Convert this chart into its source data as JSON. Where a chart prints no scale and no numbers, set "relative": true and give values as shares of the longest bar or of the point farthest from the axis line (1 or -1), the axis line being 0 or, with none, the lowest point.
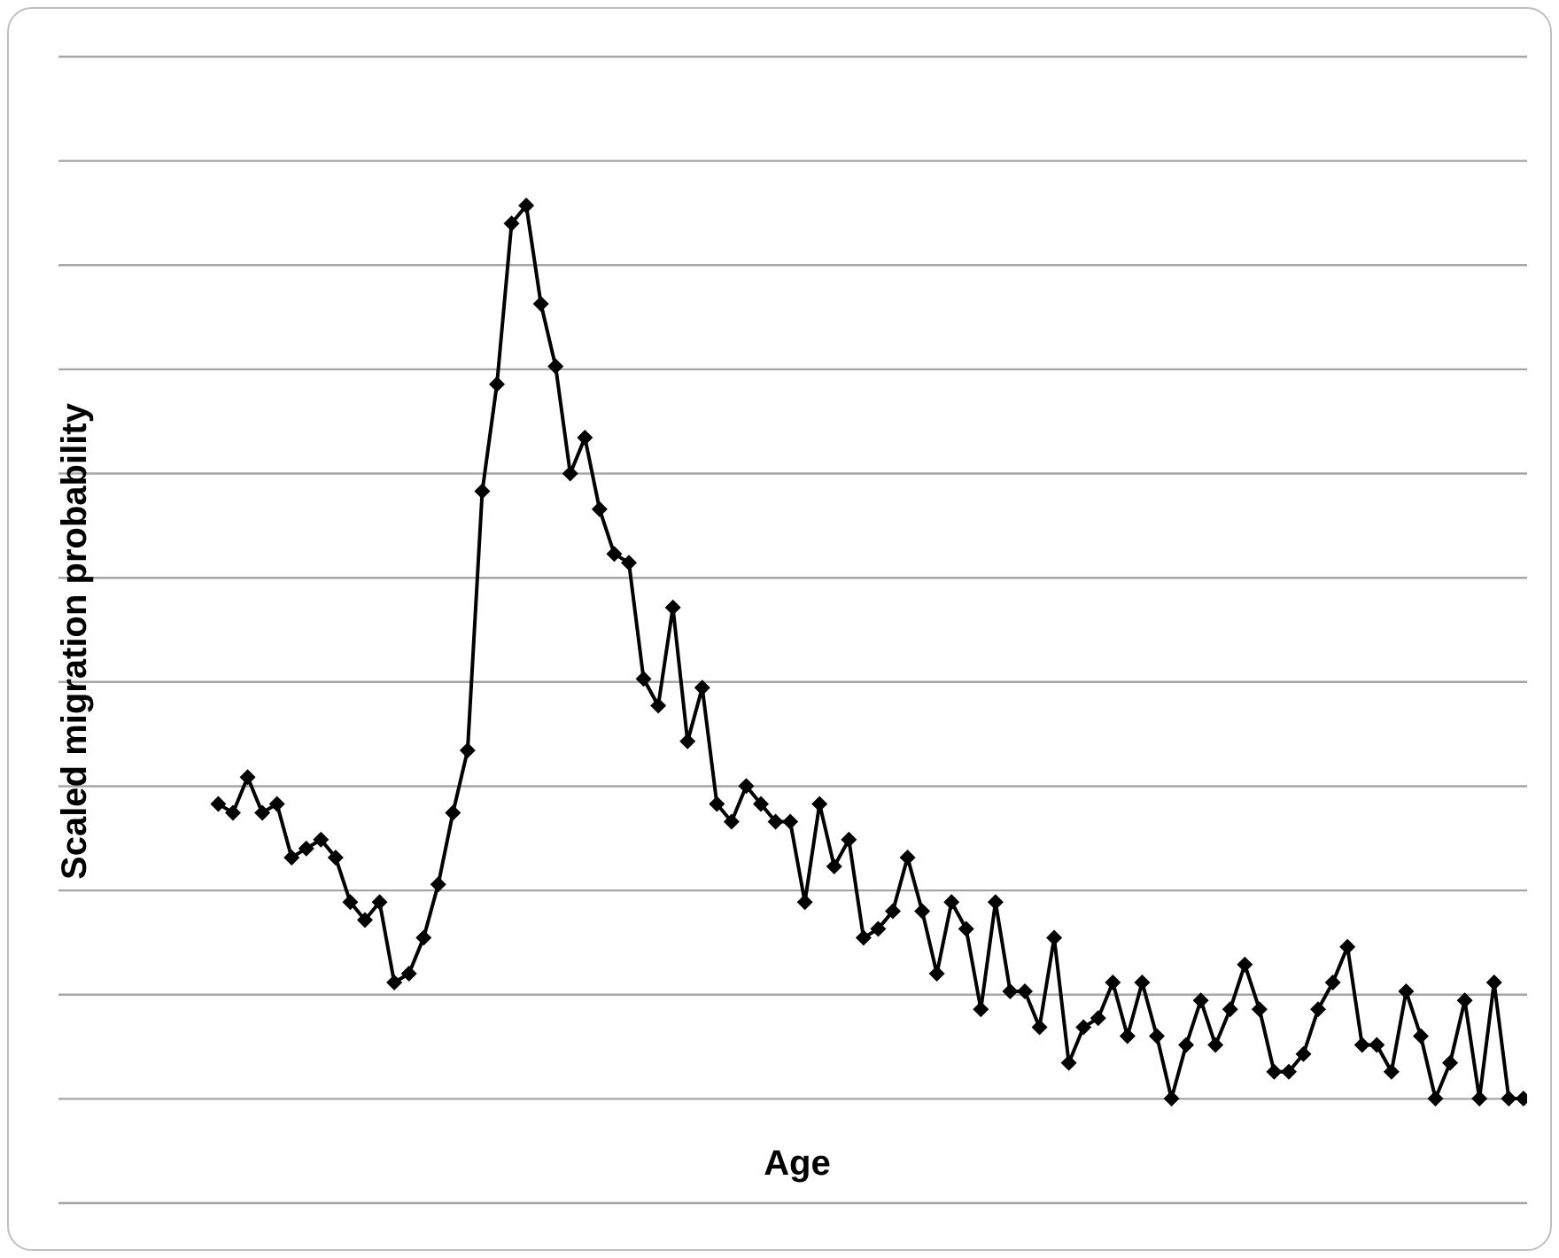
{
  "chart_data": {
    "type": "line",
    "xlabel": "Age",
    "ylabel": "Scaled migration probability",
    "relative": true,
    "grid": "y",
    "marker": "diamond",
    "line_style": "solid",
    "categories": [
      null,
      null,
      null,
      null,
      null,
      null,
      null,
      null,
      null,
      null,
      null,
      null,
      null,
      null,
      null,
      null,
      null,
      null,
      null,
      null,
      null,
      null,
      null,
      null,
      null,
      null,
      null,
      null,
      null,
      null,
      null,
      null,
      null,
      null,
      null,
      null,
      null,
      null,
      null,
      null,
      null,
      null,
      null,
      null,
      null,
      null,
      null,
      null,
      null,
      null,
      null,
      null,
      null,
      null,
      null,
      null,
      null,
      null,
      null,
      null,
      null,
      null,
      null,
      null,
      null,
      null,
      null,
      null,
      null,
      null,
      null,
      null,
      null,
      null,
      null,
      null,
      null,
      null,
      null,
      null,
      null,
      null,
      null,
      null,
      null,
      null,
      null,
      null,
      null,
      null
    ],
    "series": [
      {
        "color": "#000000",
        "values": [
          0.33,
          0.32,
          0.36,
          0.32,
          0.33,
          0.27,
          0.28,
          0.29,
          0.27,
          0.22,
          0.2,
          0.22,
          0.13,
          0.14,
          0.18,
          0.24,
          0.32,
          0.39,
          0.68,
          0.8,
          0.98,
          1,
          0.89,
          0.82,
          0.7,
          0.74,
          0.66,
          0.61,
          0.6,
          0.47,
          0.44,
          0.55,
          0.4,
          0.46,
          0.33,
          0.31,
          0.35,
          0.33,
          0.31,
          0.31,
          0.22,
          0.33,
          0.26,
          0.29,
          0.18,
          0.19,
          0.21,
          0.27,
          0.21,
          0.14,
          0.22,
          0.19,
          0.1,
          0.22,
          0.12,
          0.12,
          0.08,
          0.18,
          0.04,
          0.08,
          0.09,
          0.13,
          0.07,
          0.13,
          0.07,
          0,
          0.06,
          0.11,
          0.06,
          0.1,
          0.15,
          0.1,
          0.03,
          0.03,
          0.05,
          0.1,
          0.13,
          0.17,
          0.06,
          0.06,
          0.03,
          0.12,
          0.07,
          0,
          0.04,
          0.11,
          0,
          0.13,
          0,
          0
        ]
      }
    ]
  }
}
